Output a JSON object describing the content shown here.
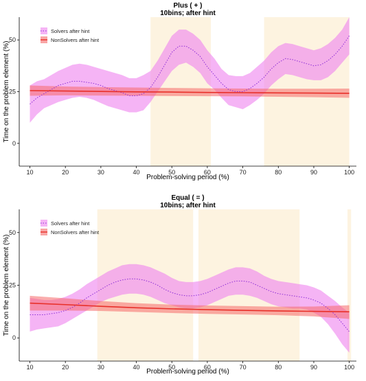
{
  "chart_data": [
    {
      "type": "line",
      "title": "Plus ( + )",
      "subtitle": "10bins; after hint",
      "xlabel": "Problem-solving period (%)",
      "ylabel": "Time on the problem element (%)",
      "xlim": [
        7,
        102
      ],
      "ylim": [
        -11,
        61
      ],
      "x_ticks": [
        10,
        20,
        30,
        40,
        50,
        60,
        70,
        80,
        90,
        100
      ],
      "y_ticks": [
        0,
        25,
        50
      ],
      "grid": false,
      "legend_position": "top-left",
      "highlight_regions": [
        [
          44,
          61
        ],
        [
          76,
          100
        ]
      ],
      "highlight_color": "#fdf3e0",
      "series": [
        {
          "name": "Solvers after hint",
          "style": "dotted-with-band",
          "color": "#8b2bd6",
          "band_color": "#ee82ee",
          "x": [
            10,
            12,
            14,
            16,
            18,
            20,
            22,
            24,
            26,
            28,
            30,
            32,
            34,
            36,
            38,
            40,
            42,
            44,
            46,
            48,
            50,
            52,
            54,
            56,
            58,
            60,
            62,
            64,
            66,
            68,
            70,
            72,
            74,
            76,
            78,
            80,
            82,
            84,
            86,
            88,
            90,
            92,
            94,
            96,
            98,
            100
          ],
          "y": [
            19,
            22,
            24,
            26,
            28,
            29,
            30,
            30,
            29.5,
            29,
            28,
            26.5,
            25.5,
            24.5,
            23,
            23,
            24,
            27,
            32,
            38,
            44,
            47,
            47,
            45,
            42,
            37,
            33,
            29,
            26,
            25,
            25,
            26.5,
            29,
            32,
            36,
            39,
            41,
            40.5,
            39.5,
            38.5,
            37.5,
            38,
            40,
            43,
            47,
            52
          ],
          "lower": [
            10,
            14,
            17,
            18.5,
            20,
            21,
            22,
            22.5,
            22,
            21,
            19.5,
            18,
            17,
            16,
            15,
            15,
            16,
            20,
            25,
            30,
            35,
            38,
            39,
            37,
            34,
            29,
            26,
            22,
            18.5,
            17.5,
            16.5,
            18.5,
            21,
            24,
            28,
            31,
            33.5,
            33,
            32,
            31,
            30.5,
            30.5,
            32,
            35,
            39,
            43
          ],
          "upper": [
            28,
            30,
            31,
            33,
            35,
            36.5,
            38,
            38.5,
            38,
            37,
            36,
            35,
            34,
            33,
            31.5,
            31.5,
            33,
            35,
            40,
            46,
            52,
            55,
            55,
            53,
            50,
            45,
            41,
            36,
            33,
            32.5,
            32.5,
            34,
            37,
            40,
            44,
            47,
            48.5,
            48,
            47,
            46,
            45,
            46,
            48,
            51,
            55,
            61
          ]
        },
        {
          "name": "NonSolvers after hint",
          "style": "solid-with-band",
          "color": "#e8302a",
          "band_color": "#f56a6a",
          "x": [
            10,
            20,
            30,
            40,
            50,
            60,
            70,
            80,
            90,
            100
          ],
          "y": [
            25.5,
            25.3,
            25.1,
            24.9,
            24.8,
            24.6,
            24.5,
            24.4,
            24.3,
            24.2
          ],
          "lower": [
            23,
            23.2,
            23.1,
            23,
            22.9,
            22.8,
            22.7,
            22.5,
            22.3,
            22
          ],
          "upper": [
            28,
            27.5,
            27.2,
            27,
            26.8,
            26.6,
            26.5,
            26.4,
            26.4,
            26.5
          ]
        }
      ]
    },
    {
      "type": "line",
      "title": "Equal ( = )",
      "subtitle": "10bins; after hint",
      "xlabel": "Problem-solving period (%)",
      "ylabel": "Time on the problem element (%)",
      "xlim": [
        7,
        102
      ],
      "ylim": [
        -11,
        61
      ],
      "x_ticks": [
        10,
        20,
        30,
        40,
        50,
        60,
        70,
        80,
        90,
        100
      ],
      "y_ticks": [
        0,
        25,
        50
      ],
      "grid": false,
      "legend_position": "top-left",
      "highlight_regions": [
        [
          29,
          56
        ],
        [
          57.5,
          86
        ],
        [
          99.5,
          100.5
        ]
      ],
      "highlight_color": "#fdf3e0",
      "series": [
        {
          "name": "Solvers after hint",
          "style": "dotted-with-band",
          "color": "#8b2bd6",
          "band_color": "#ee82ee",
          "x": [
            10,
            12,
            14,
            16,
            18,
            20,
            22,
            24,
            26,
            28,
            30,
            32,
            34,
            36,
            38,
            40,
            42,
            44,
            46,
            48,
            50,
            52,
            54,
            56,
            58,
            60,
            62,
            64,
            66,
            68,
            70,
            72,
            74,
            76,
            78,
            80,
            82,
            84,
            86,
            88,
            90,
            92,
            94,
            96,
            98,
            100
          ],
          "y": [
            11,
            11,
            11,
            11.5,
            12,
            13,
            14.5,
            16.5,
            19,
            21,
            23,
            25,
            26.5,
            27.5,
            28,
            28,
            27.5,
            26.5,
            25,
            23,
            21.5,
            20.5,
            20,
            20,
            20.5,
            21.5,
            23,
            24.5,
            26,
            27,
            27,
            26.5,
            25,
            23.5,
            22,
            21,
            20.5,
            20,
            19.5,
            19,
            18,
            16.5,
            14,
            11,
            7,
            3
          ],
          "lower": [
            3,
            4,
            4.5,
            5,
            5.5,
            7,
            9,
            11,
            13,
            15,
            17,
            18.5,
            19.5,
            20.5,
            21,
            21,
            20.5,
            19.5,
            18,
            16.5,
            15.5,
            14.5,
            14,
            14,
            14.5,
            15.5,
            17,
            18.5,
            20,
            20.5,
            20.5,
            20,
            19,
            17.5,
            16,
            15,
            14.5,
            14,
            14,
            13.5,
            12,
            10,
            6.5,
            2,
            -3,
            -7
          ],
          "upper": [
            19,
            18.5,
            18,
            18,
            18.5,
            19.5,
            21,
            23,
            25.5,
            27.5,
            29.5,
            31.5,
            33,
            34.5,
            35,
            35,
            34.5,
            33.5,
            32,
            30.5,
            28.5,
            27,
            26.5,
            26.5,
            27,
            28,
            29.5,
            31,
            32.5,
            33.5,
            33.5,
            33,
            31.5,
            29.5,
            28,
            27,
            26.5,
            26,
            25.5,
            25,
            24,
            22.5,
            20,
            17.5,
            14.5,
            12
          ]
        },
        {
          "name": "NonSolvers after hint",
          "style": "solid-with-band",
          "color": "#e8302a",
          "band_color": "#f56a6a",
          "x": [
            10,
            20,
            30,
            40,
            50,
            60,
            70,
            80,
            90,
            100
          ],
          "y": [
            16.5,
            15.8,
            15,
            14.3,
            13.8,
            13.4,
            13.1,
            12.8,
            12.6,
            12.4
          ],
          "lower": [
            13,
            13,
            12.8,
            12.3,
            11.8,
            11.4,
            11.1,
            10.8,
            10.2,
            9
          ],
          "upper": [
            20,
            18.8,
            17.5,
            16.5,
            15.8,
            15.4,
            15.1,
            14.8,
            14.9,
            15.5
          ]
        }
      ]
    }
  ]
}
